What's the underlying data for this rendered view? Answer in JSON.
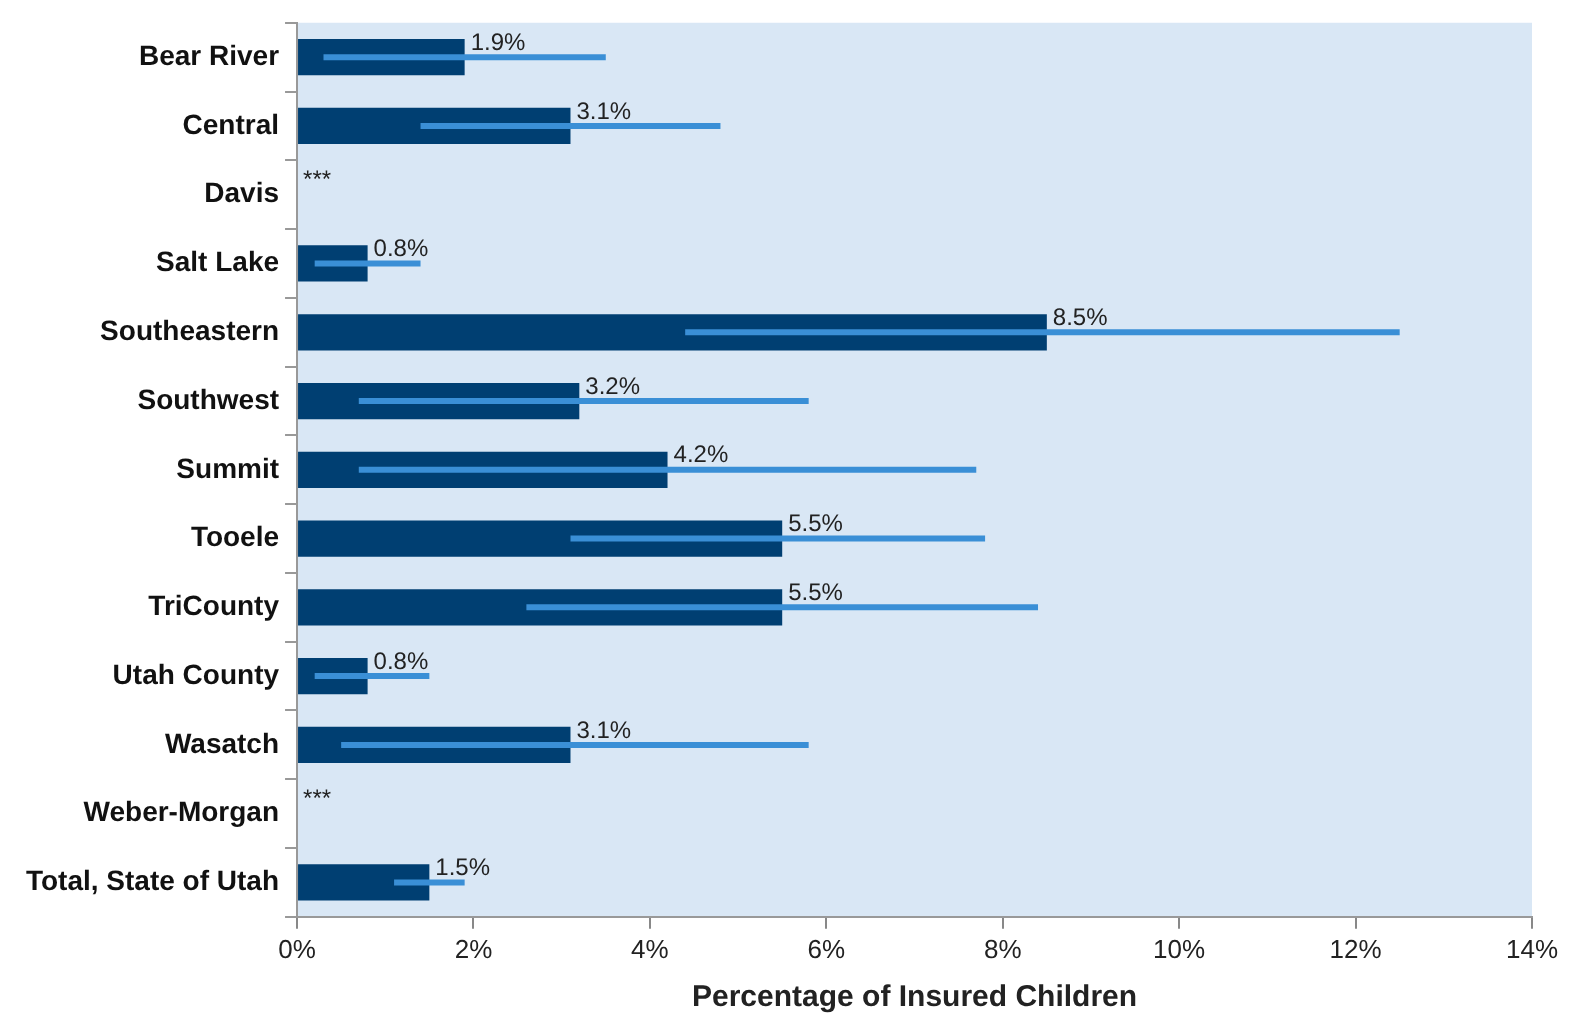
{
  "chart_data": {
    "type": "bar",
    "orientation": "horizontal",
    "xlabel": "Percentage of Insured Children",
    "categories": [
      "Bear River",
      "Central",
      "Davis",
      "Salt Lake",
      "Southeastern",
      "Southwest",
      "Summit",
      "Tooele",
      "TriCounty",
      "Utah County",
      "Wasatch",
      "Weber-Morgan",
      "Total, State of Utah"
    ],
    "values": [
      1.9,
      3.1,
      null,
      0.8,
      8.5,
      3.2,
      4.2,
      5.5,
      5.5,
      0.8,
      3.1,
      null,
      1.5
    ],
    "value_labels": [
      "1.9%",
      "3.1%",
      "***",
      "0.8%",
      "8.5%",
      "3.2%",
      "4.2%",
      "5.5%",
      "5.5%",
      "0.8%",
      "3.1%",
      "***",
      "1.5%"
    ],
    "errors": [
      [
        0.3,
        3.5
      ],
      [
        1.4,
        4.8
      ],
      null,
      [
        0.2,
        1.4
      ],
      [
        4.4,
        12.5
      ],
      [
        0.7,
        5.8
      ],
      [
        0.7,
        7.7
      ],
      [
        3.1,
        7.8
      ],
      [
        2.6,
        8.4
      ],
      [
        0.2,
        1.5
      ],
      [
        0.5,
        5.8
      ],
      null,
      [
        1.1,
        1.9
      ]
    ],
    "color": "#003f72",
    "xlim": [
      0,
      14
    ],
    "xticks": [
      {
        "value": 0,
        "label": "0%"
      },
      {
        "value": 2,
        "label": "2%"
      },
      {
        "value": 4,
        "label": "4%"
      },
      {
        "value": 6,
        "label": "6%"
      },
      {
        "value": 8,
        "label": "8%"
      },
      {
        "value": 10,
        "label": "10%"
      },
      {
        "value": 12,
        "label": "12%"
      },
      {
        "value": 14,
        "label": "14%"
      }
    ],
    "grid": false,
    "legend": false
  }
}
